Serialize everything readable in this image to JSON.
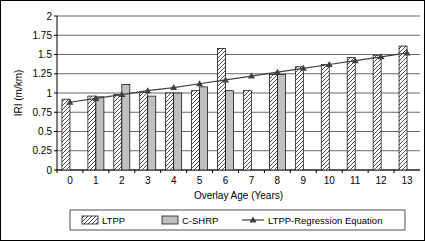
{
  "chart_data": {
    "type": "bar",
    "x_label": "Overlay Age (Years)",
    "y_label": "IRI (m/km)",
    "categories": [
      "0",
      "1",
      "2",
      "3",
      "4",
      "5",
      "6",
      "7",
      "8",
      "9",
      "10",
      "11",
      "12",
      "13"
    ],
    "series": [
      {
        "name": "LTPP",
        "type": "bar",
        "color": "#ffffff",
        "values": [
          0.92,
          0.96,
          0.98,
          1.01,
          1.0,
          1.03,
          1.58,
          1.03,
          1.24,
          1.34,
          1.37,
          1.46,
          1.49,
          1.61
        ]
      },
      {
        "name": "C-SHRP",
        "type": "bar",
        "color": "#c0c0c0",
        "values": [
          null,
          0.95,
          1.11,
          0.96,
          1.0,
          1.08,
          1.03,
          null,
          1.24,
          null,
          null,
          null,
          null,
          null
        ]
      },
      {
        "name": "LTPP-Regression Equation",
        "type": "line",
        "color": "#404040",
        "marker": "triangle",
        "values": [
          0.88,
          0.93,
          0.98,
          1.03,
          1.07,
          1.12,
          1.17,
          1.22,
          1.27,
          1.32,
          1.37,
          1.42,
          1.47,
          1.52
        ]
      }
    ],
    "ylim": [
      0,
      2
    ],
    "yticks": [
      0,
      0.25,
      0.5,
      0.75,
      1,
      1.25,
      1.5,
      1.75,
      2
    ],
    "grid": true,
    "legend": "bottom"
  }
}
